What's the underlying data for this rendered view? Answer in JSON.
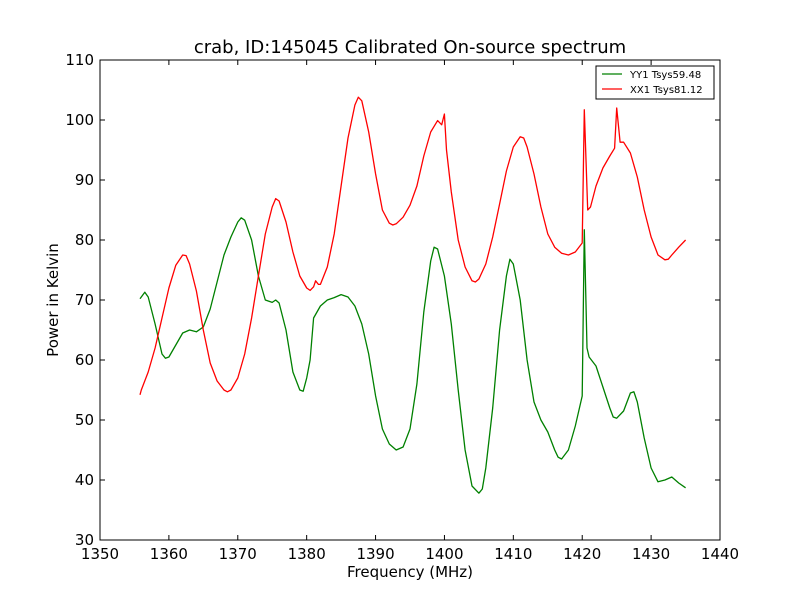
{
  "chart_data": {
    "type": "line",
    "title": "crab, ID:145045 Calibrated On-source spectrum",
    "xlabel": "Frequency (MHz)",
    "ylabel": "Power in Kelvin",
    "xlim": [
      1350,
      1440
    ],
    "ylim": [
      30,
      110
    ],
    "xticks": [
      "1350",
      "1360",
      "1370",
      "1380",
      "1390",
      "1400",
      "1410",
      "1420",
      "1430",
      "1440"
    ],
    "yticks": [
      "30",
      "40",
      "50",
      "60",
      "70",
      "80",
      "90",
      "100",
      "110"
    ],
    "grid": false,
    "legend_position": "top-right",
    "series": [
      {
        "name": "YY1 Tsys59.48",
        "color": "#008000",
        "x": [
          1355.8,
          1356.5,
          1357,
          1358,
          1359,
          1359.5,
          1360,
          1361,
          1362,
          1363,
          1364,
          1365,
          1366,
          1367,
          1368,
          1369,
          1370,
          1370.5,
          1371,
          1372,
          1373,
          1374,
          1375,
          1375.5,
          1376,
          1377,
          1378,
          1379,
          1379.5,
          1380,
          1380.5,
          1381,
          1382,
          1383,
          1384,
          1385,
          1386,
          1387,
          1388,
          1389,
          1390,
          1391,
          1392,
          1393,
          1394,
          1395,
          1396,
          1397,
          1398,
          1398.5,
          1399,
          1400,
          1401,
          1402,
          1403,
          1404,
          1405,
          1405.5,
          1406,
          1407,
          1408,
          1409,
          1409.5,
          1410,
          1411,
          1412,
          1413,
          1414,
          1415,
          1416,
          1416.5,
          1417,
          1418,
          1419,
          1420,
          1420.3,
          1420.7,
          1421,
          1422,
          1423,
          1424,
          1424.5,
          1425,
          1426,
          1427,
          1427.5,
          1428,
          1429,
          1430,
          1431,
          1432,
          1433,
          1434,
          1435
        ],
        "y": [
          70.2,
          71.3,
          70.5,
          66,
          61,
          60.3,
          60.5,
          62.5,
          64.5,
          65,
          64.7,
          65.5,
          68.5,
          73,
          77.5,
          80.5,
          83,
          83.7,
          83.3,
          80,
          74,
          70,
          69.6,
          70,
          69.5,
          65,
          58,
          55,
          54.8,
          57,
          60,
          67,
          69,
          70,
          70.4,
          70.9,
          70.5,
          69,
          66,
          61,
          54,
          48.5,
          46,
          45,
          45.5,
          48.5,
          56,
          68,
          76.5,
          78.8,
          78.5,
          74,
          66,
          55,
          45,
          39,
          37.8,
          38.5,
          42,
          52,
          65,
          74,
          76.8,
          76,
          70,
          60,
          53,
          50,
          48,
          45,
          43.8,
          43.5,
          45,
          49,
          54,
          81.7,
          62,
          60.5,
          59,
          55.5,
          52,
          50.5,
          50.3,
          51.5,
          54.5,
          54.7,
          53,
          47,
          42,
          39.7,
          40,
          40.5,
          39.5,
          38.7
        ]
      },
      {
        "name": "XX1 Tsys81.12",
        "color": "#ff0000",
        "x": [
          1355.8,
          1356,
          1357,
          1358,
          1359,
          1360,
          1361,
          1362,
          1362.5,
          1363,
          1364,
          1365,
          1366,
          1367,
          1368,
          1368.5,
          1369,
          1370,
          1371,
          1372,
          1373,
          1374,
          1375,
          1375.5,
          1376,
          1377,
          1378,
          1379,
          1380,
          1380.5,
          1381,
          1381.3,
          1381.7,
          1382,
          1383,
          1384,
          1385,
          1386,
          1387,
          1387.5,
          1388,
          1389,
          1390,
          1391,
          1392,
          1392.5,
          1393,
          1394,
          1395,
          1396,
          1397,
          1398,
          1399,
          1399.6,
          1400,
          1400.3,
          1401,
          1402,
          1403,
          1404,
          1404.5,
          1405,
          1406,
          1407,
          1408,
          1409,
          1410,
          1411,
          1411.5,
          1412,
          1413,
          1414,
          1415,
          1416,
          1417,
          1418,
          1419,
          1420,
          1420.3,
          1420.8,
          1421.2,
          1422,
          1423,
          1424,
          1424.7,
          1425,
          1425.5,
          1426,
          1427,
          1428,
          1429,
          1430,
          1431,
          1432,
          1432.5,
          1433,
          1434,
          1435
        ],
        "y": [
          54.2,
          55,
          58,
          62,
          67,
          72,
          75.8,
          77.5,
          77.4,
          76,
          71.5,
          65,
          59.5,
          56.5,
          55,
          54.7,
          55,
          57,
          61,
          67,
          74,
          81,
          85.5,
          86.9,
          86.5,
          83,
          78,
          74,
          72,
          71.6,
          72.2,
          73.2,
          72.6,
          72.6,
          75.5,
          81,
          89,
          97,
          102.5,
          103.8,
          103.2,
          98,
          91,
          85,
          82.8,
          82.5,
          82.7,
          83.8,
          85.8,
          89,
          94,
          98,
          99.9,
          99.2,
          101,
          95,
          88,
          80,
          75.5,
          73.2,
          73,
          73.5,
          76,
          80.5,
          86,
          91.5,
          95.5,
          97.2,
          97,
          95.5,
          91,
          85.5,
          81,
          78.8,
          77.8,
          77.5,
          78,
          79.5,
          101.7,
          85,
          85.5,
          89,
          92,
          94,
          95.3,
          102,
          96.3,
          96.3,
          94.5,
          90.5,
          85,
          80.5,
          77.5,
          76.7,
          76.8,
          77.5,
          78.8,
          80
        ]
      }
    ]
  }
}
